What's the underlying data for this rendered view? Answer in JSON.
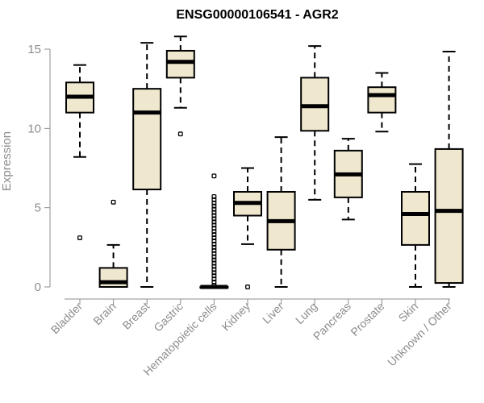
{
  "chart_data": {
    "type": "box",
    "title": "ENSG00000106541 - AGR2",
    "xlabel": "",
    "ylabel": "Expression",
    "ylim": [
      0,
      15
    ],
    "yticks": [
      0,
      5,
      10,
      15
    ],
    "box_fill": "#efe8cf",
    "stroke_color": "#000000",
    "axis_text_color": "#8c8c8c",
    "categories": [
      {
        "name": "Bladder",
        "min": 8.2,
        "q1": 11.0,
        "median": 12.0,
        "q3": 12.9,
        "max": 14.0,
        "outliers": [
          3.1
        ]
      },
      {
        "name": "Brain",
        "min": 0.0,
        "q1": 0.0,
        "median": 0.3,
        "q3": 1.2,
        "max": 2.65,
        "outliers": [
          5.35
        ]
      },
      {
        "name": "Breast",
        "min": 0.0,
        "q1": 6.15,
        "median": 11.0,
        "q3": 12.5,
        "max": 15.4,
        "outliers": []
      },
      {
        "name": "Gastric",
        "min": 11.3,
        "q1": 13.2,
        "median": 14.2,
        "q3": 14.9,
        "max": 15.8,
        "outliers": [
          9.65
        ]
      },
      {
        "name": "Hematopoietic cells",
        "min": 0.0,
        "q1": 0.0,
        "median": 0.0,
        "q3": 0.0,
        "max": 0.0,
        "outliers": [
          0.1,
          0.3,
          0.5,
          0.7,
          0.9,
          1.1,
          1.3,
          1.5,
          1.7,
          1.9,
          2.1,
          2.3,
          2.5,
          2.7,
          2.9,
          3.1,
          3.3,
          3.5,
          3.7,
          3.9,
          4.1,
          4.3,
          4.5,
          4.7,
          4.9,
          5.1,
          5.3,
          5.5,
          5.7,
          7.0
        ]
      },
      {
        "name": "Kidney",
        "min": 2.7,
        "q1": 4.5,
        "median": 5.3,
        "q3": 6.0,
        "max": 7.5,
        "outliers": [
          0.0
        ]
      },
      {
        "name": "Liver",
        "min": 0.0,
        "q1": 2.35,
        "median": 4.15,
        "q3": 6.0,
        "max": 9.45,
        "outliers": []
      },
      {
        "name": "Lung",
        "min": 5.5,
        "q1": 9.85,
        "median": 11.4,
        "q3": 13.2,
        "max": 15.2,
        "outliers": []
      },
      {
        "name": "Pancreas",
        "min": 4.25,
        "q1": 5.65,
        "median": 7.1,
        "q3": 8.6,
        "max": 9.35,
        "outliers": []
      },
      {
        "name": "Prostate",
        "min": 9.8,
        "q1": 11.0,
        "median": 12.1,
        "q3": 12.6,
        "max": 13.5,
        "outliers": []
      },
      {
        "name": "Skin",
        "min": 0.0,
        "q1": 2.65,
        "median": 4.6,
        "q3": 6.0,
        "max": 7.75,
        "outliers": []
      },
      {
        "name": "Unknown / Other",
        "min": 0.0,
        "q1": 0.25,
        "median": 4.8,
        "q3": 8.7,
        "max": 14.85,
        "outliers": []
      }
    ]
  }
}
